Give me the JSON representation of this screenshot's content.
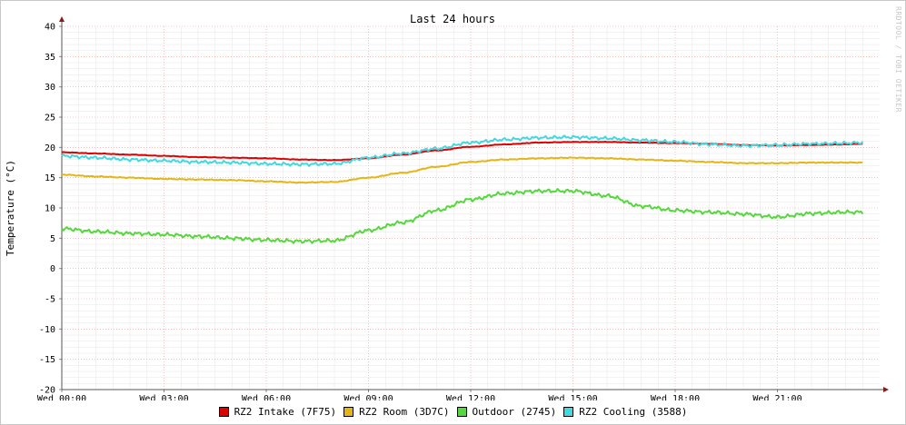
{
  "watermark": "RRDTOOL / TOBI OETIKER",
  "chart_data": {
    "type": "line",
    "title": "Last 24 hours",
    "ylabel": "Temperature (°C)",
    "xlabel": "",
    "ylim": [
      -20,
      40
    ],
    "yticks": [
      40,
      35,
      30,
      25,
      20,
      15,
      10,
      5,
      0,
      -5,
      -10,
      -15,
      -20
    ],
    "xlim": [
      0,
      23.5
    ],
    "xticks": [
      {
        "hour": 0,
        "label": "Wed 00:00"
      },
      {
        "hour": 3,
        "label": "Wed 03:00"
      },
      {
        "hour": 6,
        "label": "Wed 06:00"
      },
      {
        "hour": 9,
        "label": "Wed 09:00"
      },
      {
        "hour": 12,
        "label": "Wed 12:00"
      },
      {
        "hour": 15,
        "label": "Wed 15:00"
      },
      {
        "hour": 18,
        "label": "Wed 18:00"
      },
      {
        "hour": 21,
        "label": "Wed 21:00"
      }
    ],
    "grid": true,
    "legend_position": "bottom",
    "x_hours": [
      0,
      1,
      2,
      3,
      4,
      5,
      6,
      7,
      8,
      9,
      10,
      11,
      12,
      13,
      14,
      15,
      16,
      17,
      18,
      19,
      20,
      21,
      22,
      23,
      23.5
    ],
    "series": [
      {
        "name": "RZ2 Intake (7F75)",
        "color": "#e00000",
        "values": [
          19.2,
          19.0,
          18.8,
          18.6,
          18.4,
          18.3,
          18.2,
          18.0,
          17.9,
          18.2,
          18.8,
          19.5,
          20.1,
          20.5,
          20.8,
          20.9,
          20.9,
          20.8,
          20.7,
          20.6,
          20.4,
          20.3,
          20.4,
          20.5,
          20.6
        ]
      },
      {
        "name": "RZ2 Room (3D7C)",
        "color": "#e6b416",
        "values": [
          15.5,
          15.2,
          15.0,
          14.8,
          14.7,
          14.6,
          14.4,
          14.2,
          14.3,
          15.0,
          15.8,
          16.8,
          17.6,
          18.0,
          18.2,
          18.3,
          18.2,
          18.0,
          17.8,
          17.6,
          17.4,
          17.4,
          17.5,
          17.5,
          17.5
        ]
      },
      {
        "name": "Outdoor (2745)",
        "color": "#54d83c",
        "values": [
          6.6,
          6.1,
          5.8,
          5.6,
          5.3,
          5.0,
          4.7,
          4.5,
          4.6,
          6.3,
          7.6,
          9.6,
          11.4,
          12.4,
          12.8,
          12.8,
          12.0,
          10.3,
          9.6,
          9.3,
          9.0,
          8.5,
          9.1,
          9.3,
          9.3
        ]
      },
      {
        "name": "RZ2 Cooling (3588)",
        "color": "#42d8e2",
        "values": [
          18.6,
          18.3,
          18.0,
          17.8,
          17.6,
          17.5,
          17.3,
          17.2,
          17.3,
          18.3,
          19.0,
          19.8,
          20.8,
          21.3,
          21.6,
          21.7,
          21.5,
          21.2,
          20.9,
          20.5,
          20.3,
          20.4,
          20.6,
          20.7,
          20.8
        ]
      }
    ]
  }
}
